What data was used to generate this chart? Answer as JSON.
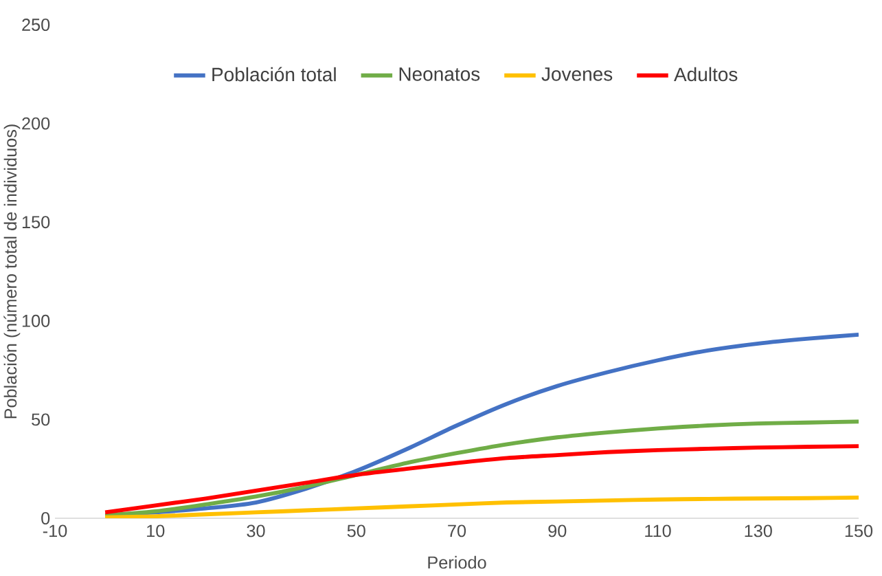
{
  "chart_data": {
    "type": "line",
    "xlabel": "Periodo",
    "ylabel": "Población (número total de individuos)",
    "x": [
      0,
      10,
      20,
      30,
      40,
      50,
      60,
      70,
      80,
      90,
      100,
      110,
      120,
      130,
      140,
      150
    ],
    "series": [
      {
        "name": "Población total",
        "color": "#4472c4",
        "values": [
          1.5,
          3,
          5,
          8,
          15,
          24,
          35,
          47,
          58,
          67,
          74,
          80,
          85,
          88.5,
          91,
          93
        ]
      },
      {
        "name": "Neonatos",
        "color": "#70ad47",
        "values": [
          1.5,
          3.5,
          7,
          11,
          16,
          22,
          28,
          33,
          37.5,
          41,
          43.5,
          45.5,
          47,
          48,
          48.5,
          49
        ]
      },
      {
        "name": "Jovenes",
        "color": "#ffc000",
        "values": [
          0.5,
          1,
          2,
          3,
          4,
          5,
          6,
          7,
          8,
          8.5,
          9,
          9.5,
          9.8,
          10,
          10.2,
          10.5
        ]
      },
      {
        "name": "Adultos",
        "color": "#ff0000",
        "values": [
          3,
          6.5,
          10,
          14,
          18,
          22,
          25,
          28,
          30.5,
          32,
          33.5,
          34.5,
          35.2,
          35.8,
          36.2,
          36.5
        ]
      }
    ],
    "xlim": [
      -10,
      150
    ],
    "xticks": [
      -10,
      10,
      30,
      50,
      70,
      90,
      110,
      130,
      150
    ],
    "ylim": [
      0,
      250
    ],
    "yticks": [
      0,
      50,
      100,
      150,
      200,
      250
    ],
    "legend": "top"
  }
}
